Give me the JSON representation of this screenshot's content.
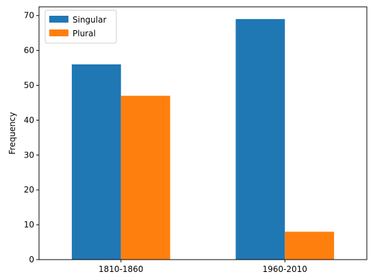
{
  "chart_data": {
    "type": "bar",
    "categories": [
      "1810-1860",
      "1960-2010"
    ],
    "series": [
      {
        "name": "Singular",
        "values": [
          56,
          69
        ],
        "color": "#1f77b4"
      },
      {
        "name": "Plural",
        "values": [
          47,
          8
        ],
        "color": "#ff7f0e"
      }
    ],
    "title": "",
    "xlabel": "",
    "ylabel": "Frequency",
    "ylim": [
      0,
      72.5
    ],
    "yticks": [
      0,
      10,
      20,
      30,
      40,
      50,
      60,
      70
    ],
    "grid": false,
    "legend_position": "top-left"
  }
}
